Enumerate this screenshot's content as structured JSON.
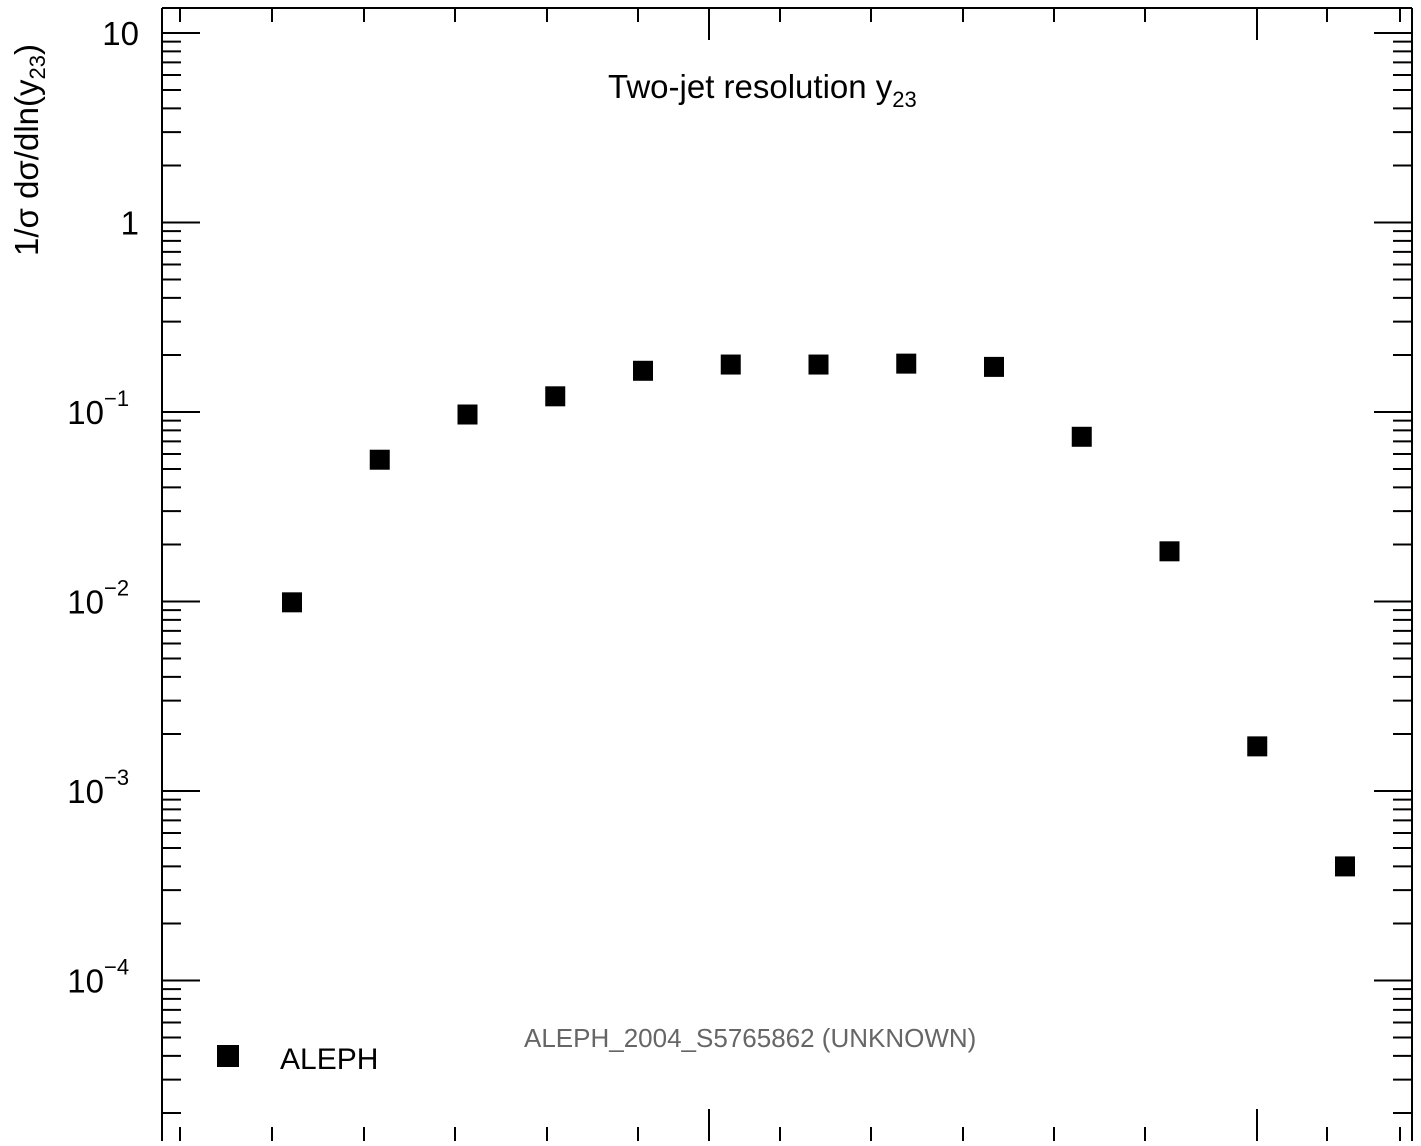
{
  "chart_data": {
    "type": "scatter",
    "title": "Two-jet resolution y23",
    "title_parts": {
      "main": "Two-jet resolution y",
      "subscript": "23"
    },
    "ylabel": "1/σ  dσ/dln(y23)",
    "ylabel_parts": {
      "main": "1/σ  dσ/dln(y",
      "subscript": "23",
      "closing": ")"
    },
    "y_scale": "log",
    "ylim": [
      2e-05,
      12
    ],
    "y_ticks": [
      {
        "value": 10,
        "base": "10",
        "exponent": ""
      },
      {
        "value": 1,
        "base": "1",
        "exponent": ""
      },
      {
        "value": 0.1,
        "base": "10",
        "exponent": "−1"
      },
      {
        "value": 0.01,
        "base": "10",
        "exponent": "−2"
      },
      {
        "value": 0.001,
        "base": "10",
        "exponent": "−3"
      },
      {
        "value": 0.0001,
        "base": "10",
        "exponent": "−4"
      }
    ],
    "series": [
      {
        "name": "ALEPH",
        "marker": "square",
        "color": "#000000",
        "values": [
          0.0099,
          0.056,
          0.097,
          0.121,
          0.165,
          0.178,
          0.178,
          0.18,
          0.173,
          0.074,
          0.0184,
          0.00172,
          0.0004
        ]
      }
    ],
    "annotation": "ALEPH_2004_S5765862 (UNKNOWN)",
    "annotation_color": "#666666",
    "legend_position": "bottom-left",
    "grid": false
  }
}
